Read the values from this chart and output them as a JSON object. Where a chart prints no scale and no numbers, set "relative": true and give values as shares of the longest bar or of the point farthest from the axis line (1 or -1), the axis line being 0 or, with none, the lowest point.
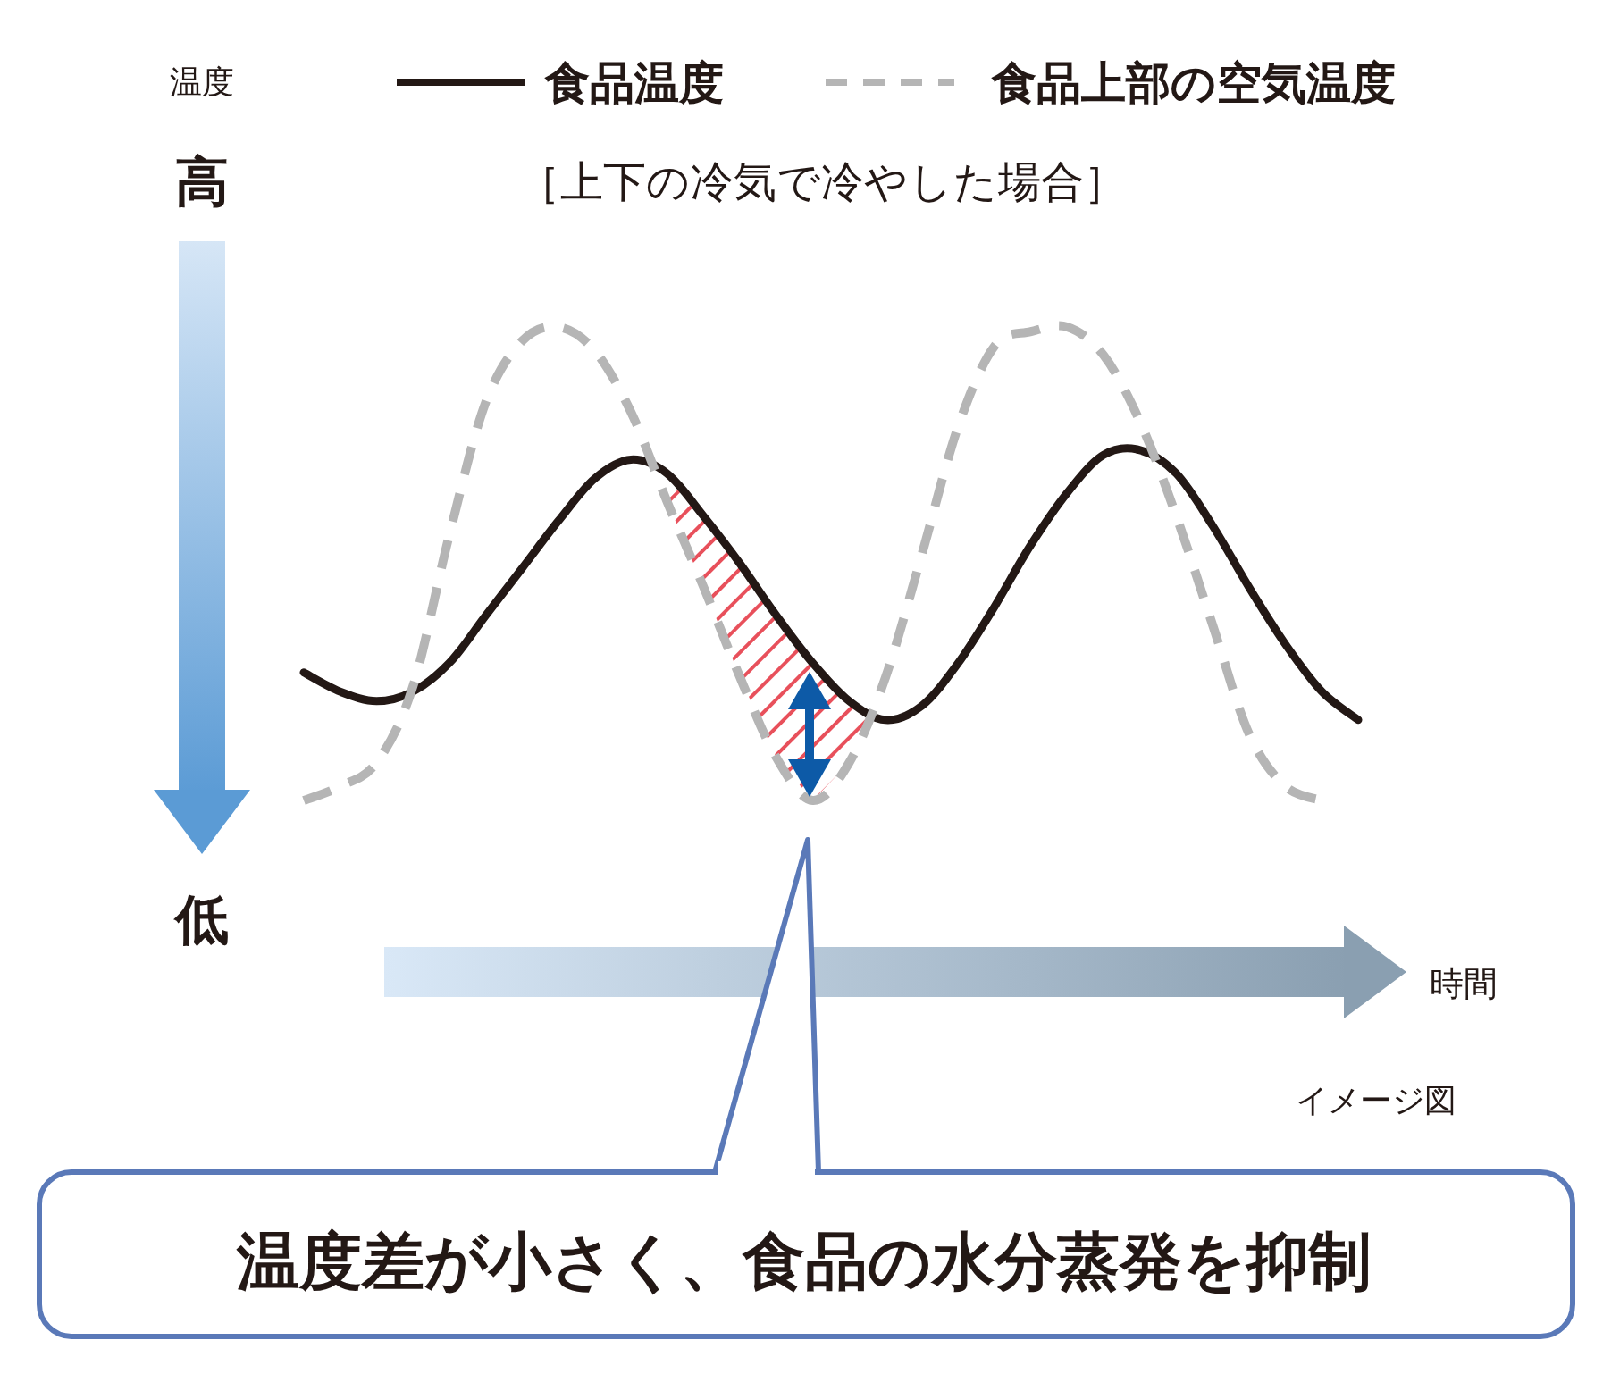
{
  "chart_data": {
    "type": "line",
    "relative": true,
    "title": "［上下の冷気で冷やした場合］",
    "legend": "top",
    "categories": [
      null,
      null,
      null,
      null,
      null,
      null,
      null,
      null,
      null,
      null,
      null,
      null,
      null,
      null,
      null,
      null,
      null,
      null,
      null,
      null,
      null,
      null,
      null,
      null,
      null,
      null,
      null,
      null,
      null,
      null
    ],
    "series": [
      {
        "name": "食品温度",
        "color": "#231815",
        "line_style": "solid",
        "values": [
          0.27,
          0.23,
          0.21,
          0.23,
          0.29,
          0.39,
          0.49,
          0.59,
          0.68,
          0.72,
          0.69,
          0.6,
          0.5,
          0.39,
          0.29,
          0.21,
          0.17,
          0.2,
          0.29,
          0.41,
          0.54,
          0.65,
          0.73,
          0.74,
          0.69,
          0.58,
          0.45,
          0.33,
          0.23,
          0.17
        ]
      },
      {
        "name": "食品上部の空気温度",
        "color": "#b5b5b5",
        "line_style": "dashed",
        "values": [
          0,
          0.03,
          0.08,
          0.24,
          0.56,
          0.84,
          0.97,
          1,
          0.95,
          0.82,
          0.63,
          0.45,
          0.26,
          0.09,
          0,
          0.08,
          0.26,
          0.52,
          0.79,
          0.96,
          0.99,
          1,
          0.94,
          0.8,
          0.6,
          0.37,
          0.14,
          0.03,
          0,
          null
        ]
      }
    ],
    "annotations": [
      "温度",
      "高",
      "低",
      "時間",
      "イメージ図",
      "温度差が小さく、食品の水分蒸発を抑制"
    ]
  }
}
